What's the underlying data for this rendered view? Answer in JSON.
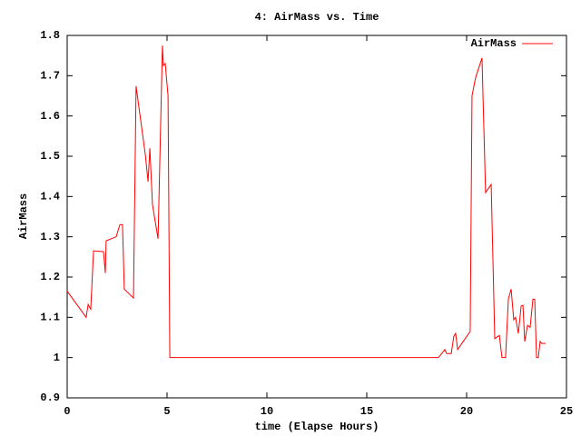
{
  "chart_data": {
    "type": "line",
    "title": "4: AirMass vs. Time",
    "x_label": "time (Elapse Hours)",
    "y_label": "AirMass",
    "x": [
      0,
      0.95,
      1.05,
      1.18,
      1.32,
      1.82,
      1.91,
      1.95,
      2.45,
      2.64,
      2.77,
      2.86,
      3.32,
      3.45,
      3.91,
      4.05,
      4.14,
      4.27,
      4.55,
      4.77,
      4.82,
      4.91,
      5.05,
      5.14,
      18.59,
      18.91,
      19.0,
      19.23,
      19.36,
      19.45,
      19.55,
      20.18,
      20.27,
      20.45,
      20.77,
      20.95,
      21.23,
      21.41,
      21.64,
      21.77,
      21.95,
      22.09,
      22.23,
      22.36,
      22.45,
      22.59,
      22.73,
      22.82,
      22.91,
      23.05,
      23.18,
      23.32,
      23.41,
      23.5,
      23.59,
      23.68,
      23.77,
      23.95
    ],
    "series": [
      {
        "name": "AirMass",
        "color": "#ff0000",
        "values": [
          1.165,
          1.1,
          1.132,
          1.12,
          1.265,
          1.263,
          1.21,
          1.29,
          1.3,
          1.33,
          1.33,
          1.17,
          1.148,
          1.674,
          1.505,
          1.437,
          1.52,
          1.38,
          1.295,
          1.775,
          1.725,
          1.73,
          1.65,
          1.0,
          1.0,
          1.02,
          1.01,
          1.01,
          1.053,
          1.06,
          1.02,
          1.065,
          1.65,
          1.695,
          1.744,
          1.41,
          1.43,
          1.047,
          1.055,
          1.0,
          1.0,
          1.145,
          1.17,
          1.094,
          1.1,
          1.06,
          1.128,
          1.13,
          1.04,
          1.08,
          1.075,
          1.145,
          1.145,
          1.0,
          1.0,
          1.04,
          1.035,
          1.035
        ]
      }
    ],
    "xlim": [
      0,
      25
    ],
    "xticks": [
      0,
      5,
      10,
      15,
      20,
      25
    ],
    "ylim": [
      0.9,
      1.8
    ],
    "yticks": [
      0.9,
      1,
      1.1,
      1.2,
      1.3,
      1.4,
      1.5,
      1.6,
      1.7,
      1.8
    ],
    "legend": "top-right"
  }
}
